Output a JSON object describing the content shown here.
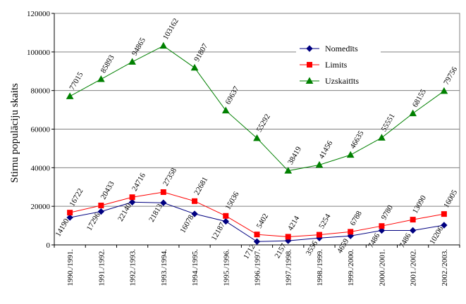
{
  "chart_data": {
    "type": "line",
    "title": "",
    "xlabel": "",
    "ylabel": "Stirnu populāciju skaits",
    "ylim": [
      0,
      120000
    ],
    "yticks": [
      0,
      20000,
      40000,
      60000,
      80000,
      100000,
      120000
    ],
    "ytick_labels": [
      "0",
      "20000",
      "40000",
      "60000",
      "80000",
      "100000",
      "120000"
    ],
    "grid": "horizontal",
    "legend_position": "right",
    "categories": [
      "1990./1991.",
      "1991./1992.",
      "1992./1993.",
      "1993./1994.",
      "1994./1995.",
      "1995./1996.",
      "1996./1997.",
      "1997./1998.",
      "1998./1999.",
      "1999./2000.",
      "2000./2001.",
      "2001./2002.",
      "2002./2003."
    ],
    "series": [
      {
        "name": "Nomedīts",
        "color": "#000080",
        "marker": "diamond",
        "values": [
          14190,
          17296,
          22140,
          21813,
          16078,
          12187,
          1712,
          2157,
          3556,
          4659,
          7486,
          7486,
          10206
        ],
        "labels": [
          "14190",
          "17296",
          "22140",
          "21813",
          "16078",
          "12187",
          "1712",
          "2157",
          "3556",
          "4659",
          "7486",
          "7486",
          "10206"
        ]
      },
      {
        "name": "Limits",
        "color": "#ff0000",
        "marker": "square",
        "values": [
          16722,
          20433,
          24716,
          27358,
          22681,
          15036,
          5402,
          4214,
          5254,
          6788,
          9780,
          13090,
          16005
        ],
        "labels": [
          "16722",
          "20433",
          "24716",
          "27358",
          "22681",
          "15036",
          "5402",
          "4214",
          "5254",
          "6788",
          "9780",
          "13090",
          "16005"
        ]
      },
      {
        "name": "Uzskaitīts",
        "color": "#008000",
        "marker": "triangle",
        "values": [
          77015,
          85893,
          94865,
          103162,
          91807,
          69637,
          55292,
          38419,
          41456,
          46635,
          55551,
          68155,
          79756
        ],
        "labels": [
          "77015",
          "85893",
          "94865",
          "103162",
          "91807",
          "69637",
          "55292",
          "38419",
          "41456",
          "46635",
          "55551",
          "68155",
          "79756"
        ]
      }
    ]
  }
}
